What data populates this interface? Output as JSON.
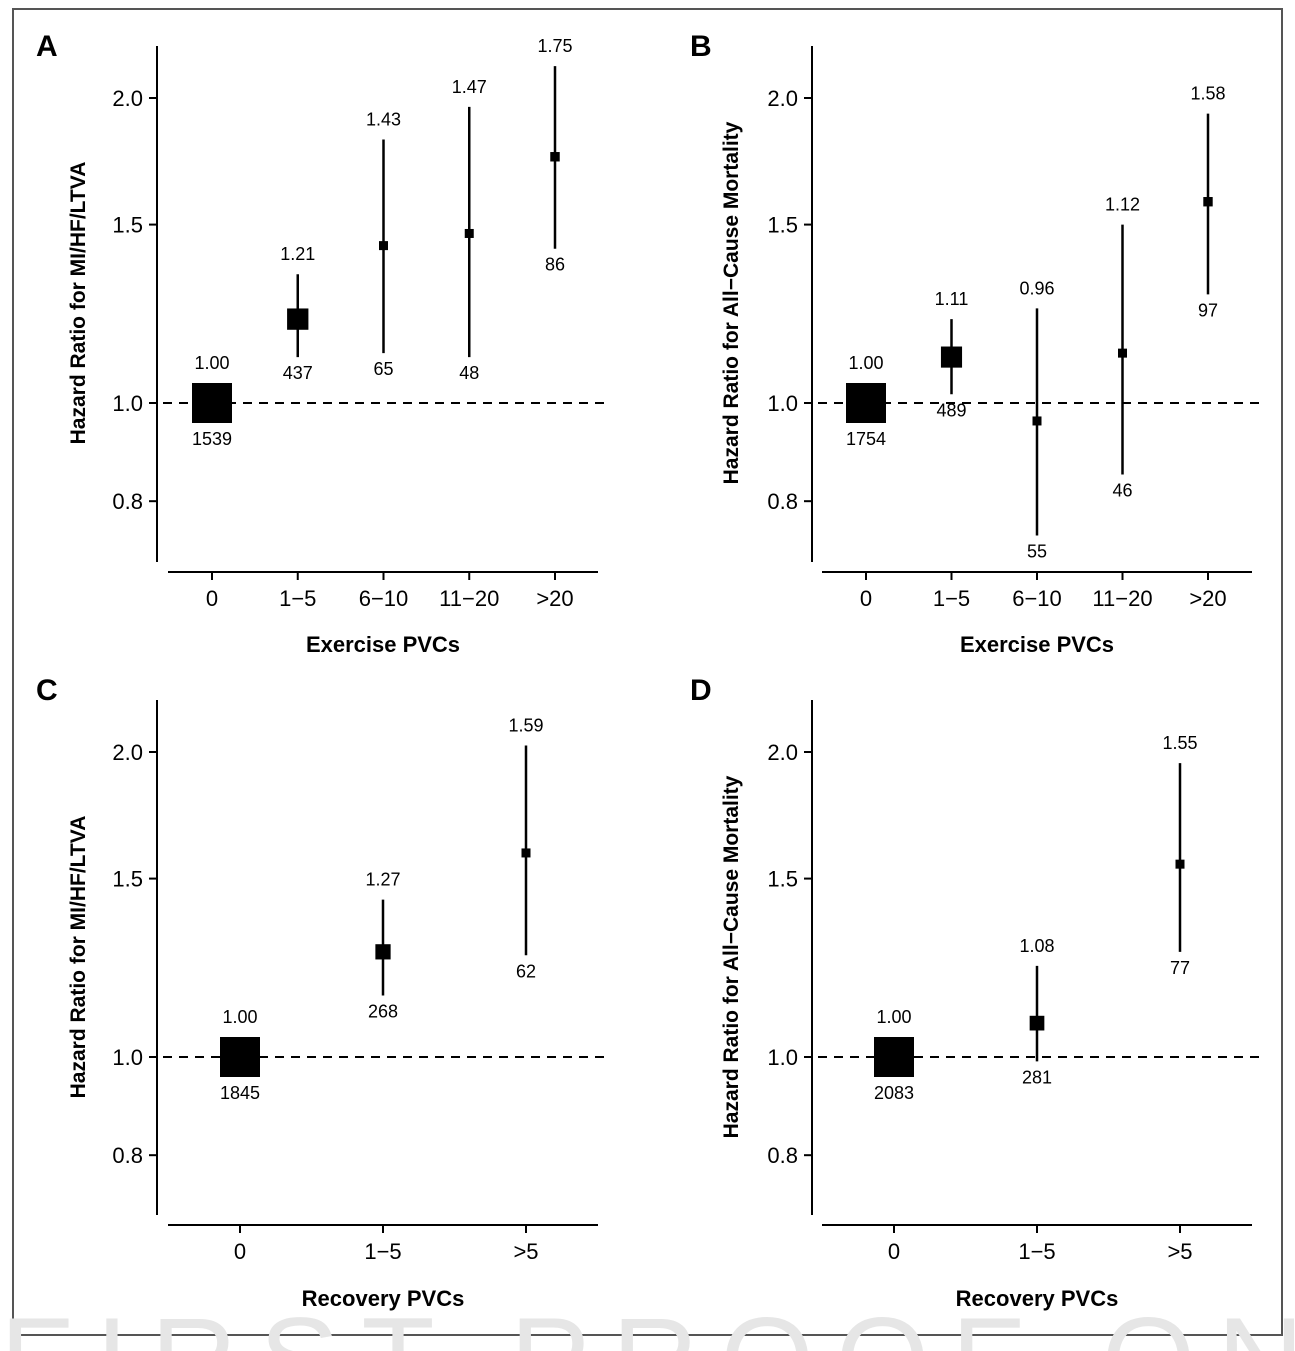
{
  "watermark": "FIRST PROOF ONLY",
  "colors": {
    "ink": "#000000",
    "frame": "#555555",
    "watermark": "#e6e6e6"
  },
  "chart_data": [
    {
      "type": "scatter",
      "panel": "A",
      "title": "",
      "xlabel": "Exercise PVCs",
      "ylabel": "Hazard Ratio for MI/HF/LTVA",
      "y_scale": "log",
      "ylim": [
        0.7,
        2.2
      ],
      "yticks": [
        0.8,
        1.0,
        1.5,
        2.0
      ],
      "ytick_labels": [
        "0.8",
        "1.0",
        "1.5",
        "2.0"
      ],
      "reference_line": 1.0,
      "categories": [
        "0",
        "1−5",
        "6−10",
        "11−20",
        ">20"
      ],
      "hr": [
        1.0,
        1.21,
        1.43,
        1.47,
        1.75
      ],
      "ci_low": [
        0.98,
        1.11,
        1.12,
        1.11,
        1.42
      ],
      "ci_high": [
        1.02,
        1.34,
        1.82,
        1.96,
        2.15
      ],
      "hr_labels": [
        "1.00",
        "1.21",
        "1.43",
        "1.47",
        "1.75"
      ],
      "n_labels": [
        "1539",
        "437",
        "65",
        "48",
        "86"
      ]
    },
    {
      "type": "scatter",
      "panel": "B",
      "title": "",
      "xlabel": "Exercise PVCs",
      "ylabel": "Hazard Ratio for All−Cause Mortality",
      "y_scale": "log",
      "ylim": [
        0.7,
        2.2
      ],
      "yticks": [
        0.8,
        1.0,
        1.5,
        2.0
      ],
      "ytick_labels": [
        "0.8",
        "1.0",
        "1.5",
        "2.0"
      ],
      "reference_line": 1.0,
      "categories": [
        "0",
        "1−5",
        "6−10",
        "11−20",
        ">20"
      ],
      "hr": [
        1.0,
        1.11,
        0.96,
        1.12,
        1.58
      ],
      "ci_low": [
        0.98,
        1.02,
        0.74,
        0.85,
        1.28
      ],
      "ci_high": [
        1.02,
        1.21,
        1.24,
        1.5,
        1.93
      ],
      "hr_labels": [
        "1.00",
        "1.11",
        "0.96",
        "1.12",
        "1.58"
      ],
      "n_labels": [
        "1754",
        "489",
        "55",
        "46",
        "97"
      ]
    },
    {
      "type": "scatter",
      "panel": "C",
      "title": "",
      "xlabel": "Recovery PVCs",
      "ylabel": "Hazard Ratio for MI/HF/LTVA",
      "y_scale": "log",
      "ylim": [
        0.7,
        2.2
      ],
      "yticks": [
        0.8,
        1.0,
        1.5,
        2.0
      ],
      "ytick_labels": [
        "0.8",
        "1.0",
        "1.5",
        "2.0"
      ],
      "reference_line": 1.0,
      "categories": [
        "0",
        "1−5",
        ">5"
      ],
      "hr": [
        1.0,
        1.27,
        1.59
      ],
      "ci_low": [
        0.98,
        1.15,
        1.26
      ],
      "ci_high": [
        1.02,
        1.43,
        2.03
      ],
      "hr_labels": [
        "1.00",
        "1.27",
        "1.59"
      ],
      "n_labels": [
        "1845",
        "268",
        "62"
      ]
    },
    {
      "type": "scatter",
      "panel": "D",
      "title": "",
      "xlabel": "Recovery PVCs",
      "ylabel": "Hazard Ratio for All−Cause Mortality",
      "y_scale": "log",
      "ylim": [
        0.7,
        2.2
      ],
      "yticks": [
        0.8,
        1.0,
        1.5,
        2.0
      ],
      "ytick_labels": [
        "0.8",
        "1.0",
        "1.5",
        "2.0"
      ],
      "reference_line": 1.0,
      "categories": [
        "0",
        "1−5",
        ">5"
      ],
      "hr": [
        1.0,
        1.08,
        1.55
      ],
      "ci_low": [
        0.98,
        0.99,
        1.27
      ],
      "ci_high": [
        1.02,
        1.23,
        1.95
      ],
      "hr_labels": [
        "1.00",
        "1.08",
        "1.55"
      ],
      "n_labels": [
        "2083",
        "281",
        "77"
      ]
    }
  ]
}
